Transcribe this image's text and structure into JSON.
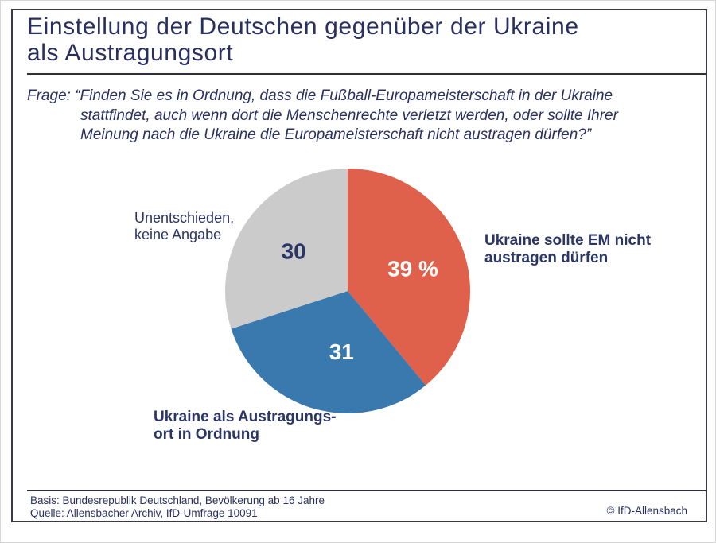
{
  "header": {
    "title_lines": [
      "Einstellung der Deutschen gegenüber der Ukraine",
      "als Austragungsort"
    ]
  },
  "question": {
    "lines": [
      "Frage: “Finden Sie es in Ordnung, dass die Fußball-Europameisterschaft in der Ukraine",
      "stattfindet, auch wenn dort die Menschenrechte verletzt werden, oder sollte Ihrer",
      "Meinung nach die Ukraine die Europameisterschaft nicht austragen dürfen?”"
    ]
  },
  "chart_data": {
    "type": "pie",
    "unit": "percent",
    "start_angle_deg": 0,
    "direction": "clockwise",
    "total": 100,
    "slices": [
      {
        "label": "Ukraine sollte EM nicht austragen dürfen",
        "value": 39,
        "display": "39 %",
        "color": "#DF604B",
        "value_color": "#FFFFFF"
      },
      {
        "label": "Ukraine als Austragungsort in Ordnung",
        "value": 31,
        "display": "31",
        "color": "#3979AD",
        "value_color": "#FFFFFF"
      },
      {
        "label": "Unentschieden, keine Angabe",
        "value": 30,
        "display": "30",
        "color": "#CBCBCB",
        "value_color": "#2B3566"
      }
    ],
    "callouts": [
      {
        "id": "against",
        "lines": [
          "Ukraine sollte EM nicht",
          "austragen dürfen"
        ],
        "bold": true
      },
      {
        "id": "infavor",
        "lines": [
          "Ukraine als Austragungs-",
          "ort in Ordnung"
        ],
        "bold": true
      },
      {
        "id": "undecided",
        "lines": [
          "Unentschieden,",
          "keine Angabe"
        ],
        "bold": false
      }
    ]
  },
  "footer": {
    "basis": "Basis: Bundesrepublik Deutschland, Bevölkerung ab 16 Jahre",
    "quelle": "Quelle: Allensbacher Archiv, IfD-Umfrage 10091",
    "copyright": "© IfD-Allensbach"
  },
  "colors": {
    "text_navy": "#293061",
    "rule": "#2F2F3A",
    "slice_red": "#DF604B",
    "slice_blue": "#3979AD",
    "slice_gray": "#CBCBCB"
  }
}
